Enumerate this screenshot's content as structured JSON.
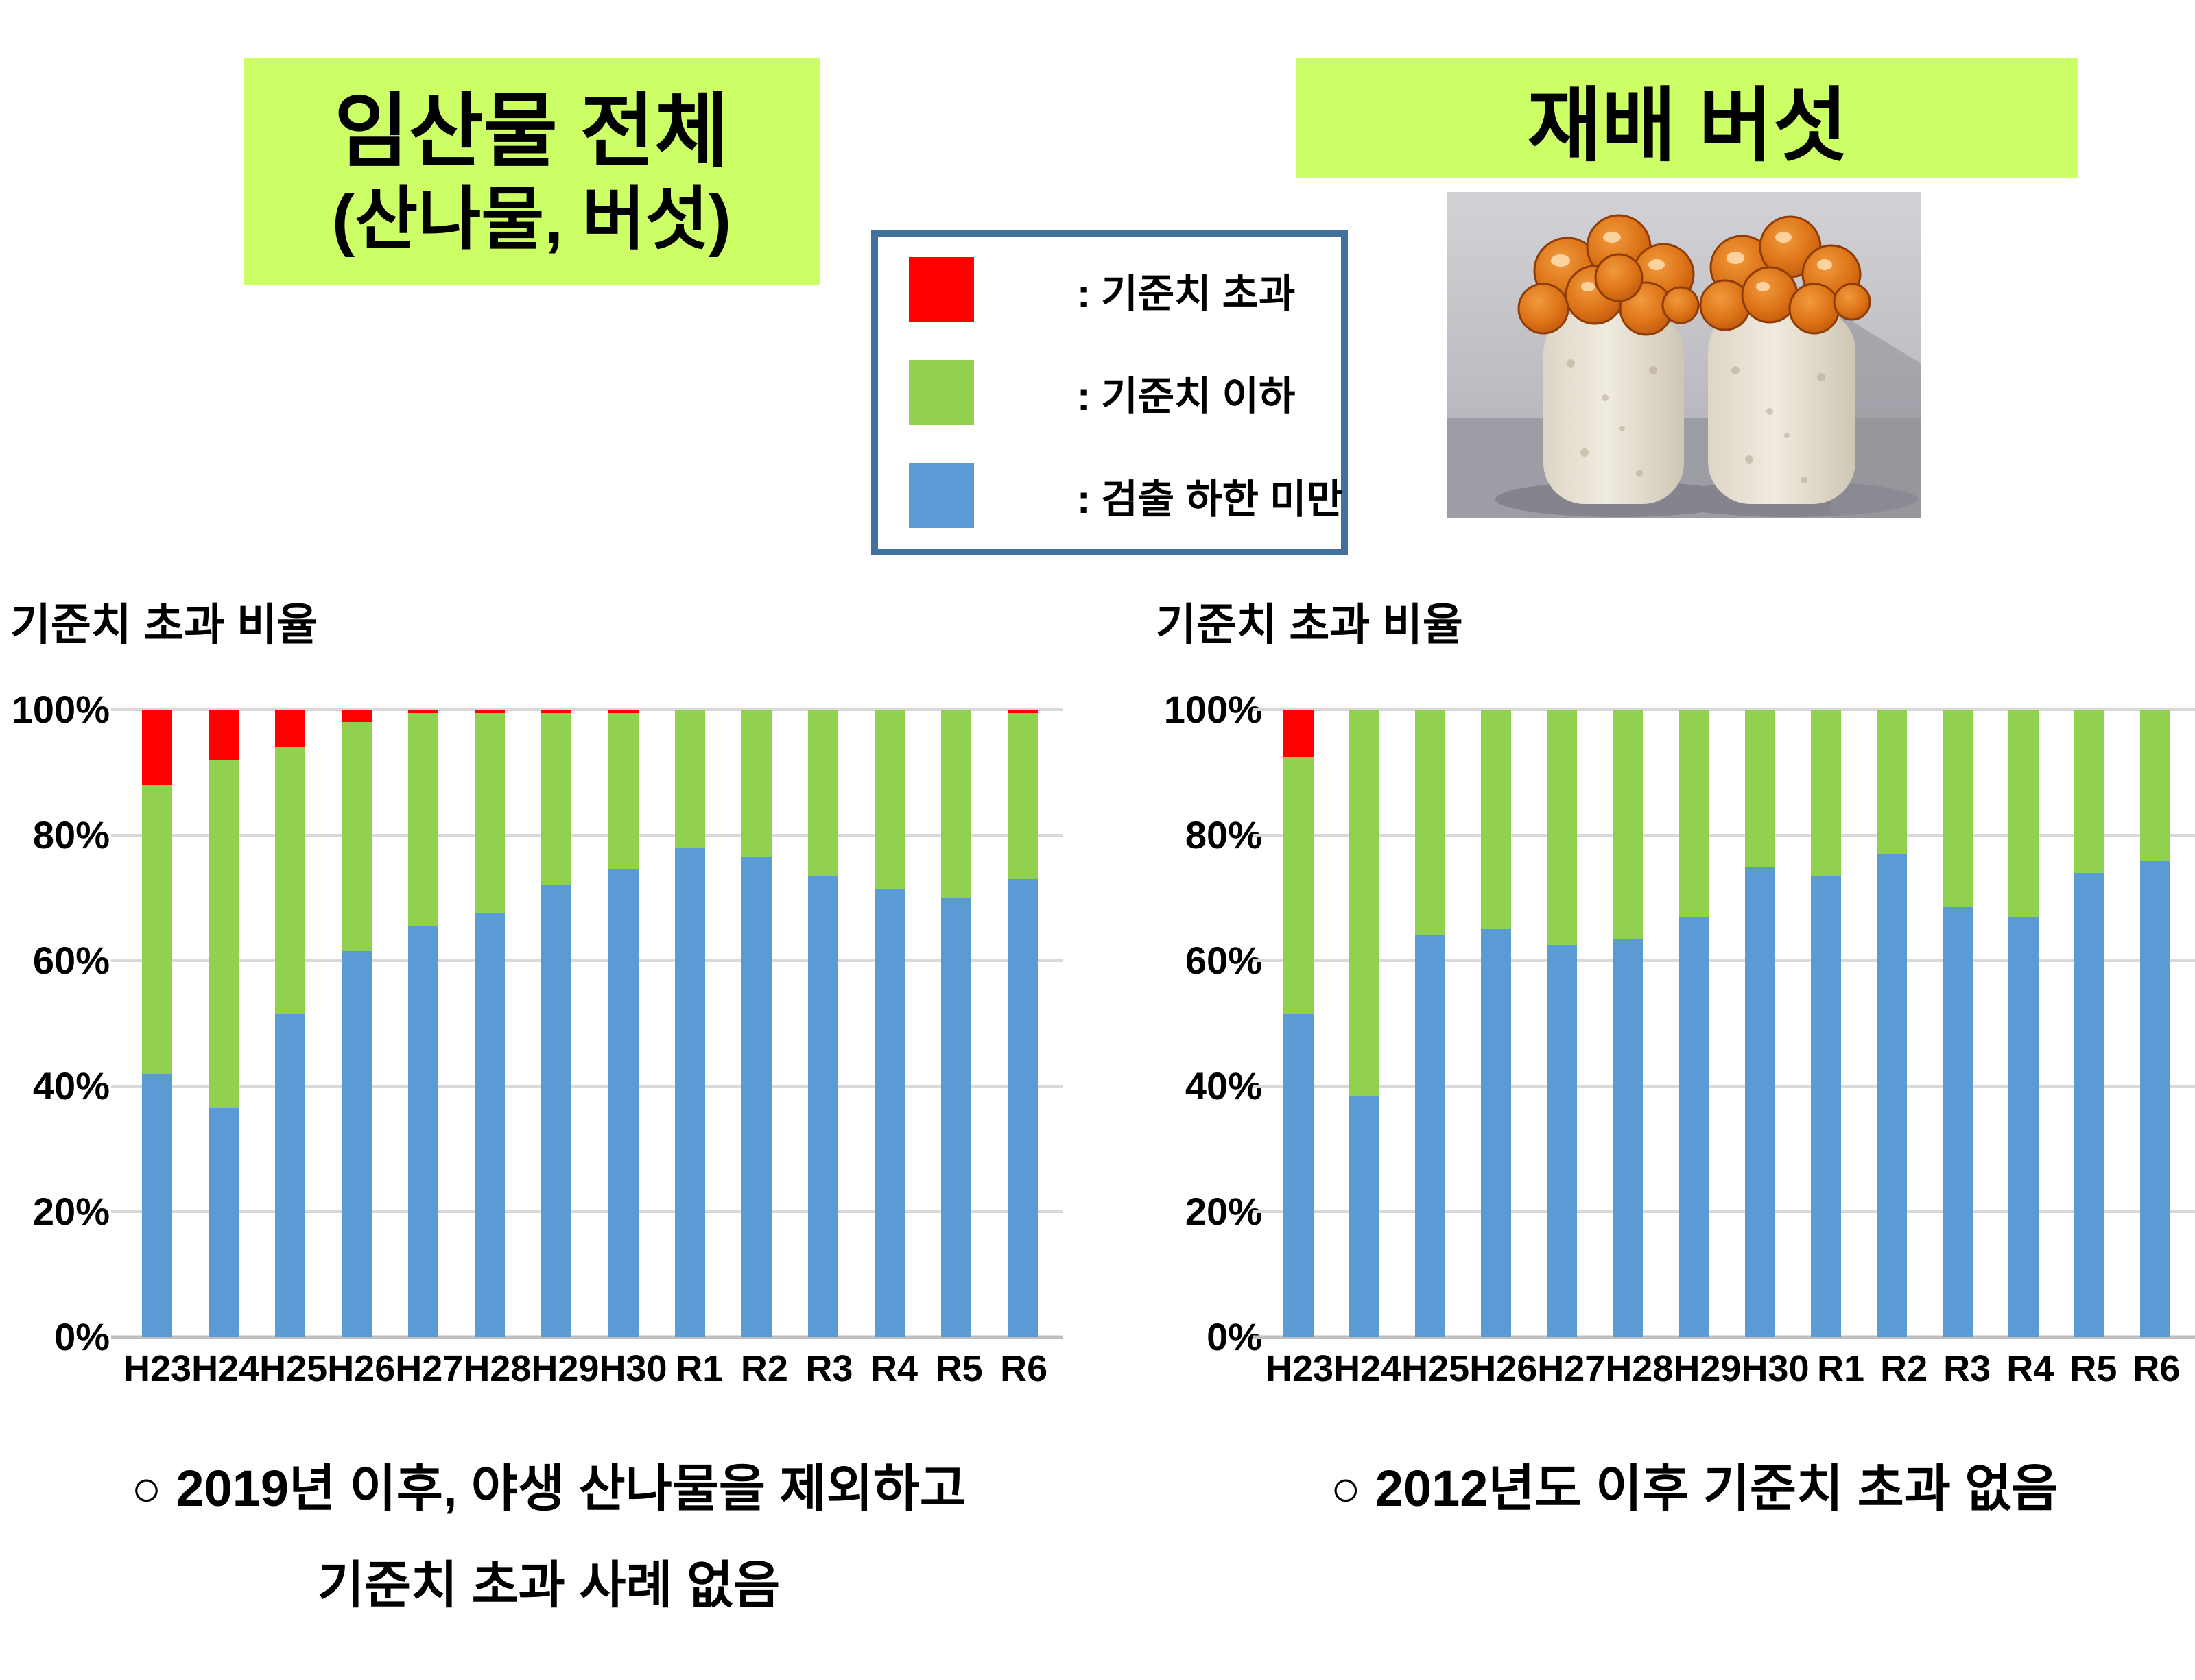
{
  "page": {
    "background": "#ffffff",
    "banner_color": "#ccff66"
  },
  "banners": {
    "left": {
      "line1": "임산물 전체",
      "line2": "(산나물, 버섯)"
    },
    "right": {
      "label": "재배 버섯"
    }
  },
  "legend": {
    "border_color": "#41719c",
    "items": [
      {
        "name": "exceeds-standard",
        "label": ": 기준치 초과",
        "color": "#ff0000"
      },
      {
        "name": "below-standard",
        "label": ": 기준치 이하",
        "color": "#92d050"
      },
      {
        "name": "below-detection-limit",
        "label": ": 검출 하한 미만",
        "color": "#5b9bd5"
      }
    ]
  },
  "photo_palette": {
    "background": "#c2c2c8",
    "substrate": "#eae4d8",
    "caps": "#d96c14"
  },
  "footnotes": {
    "left_line1": "○ 2019년 이후, 야생 산나물을 제외하고",
    "left_line2": "기준치 초과 사례 없음",
    "right_line1": "○ 2012년도 이후 기준치 초과 없음"
  },
  "chart_data": [
    {
      "id": "forest-products-all",
      "section_label": "임산물 전체 (산나물, 버섯)",
      "type": "bar",
      "stacked": true,
      "title": "기준치 초과 비율",
      "grid": true,
      "ylim": [
        0,
        100
      ],
      "y_ticks": [
        "100%",
        "80%",
        "60%",
        "40%",
        "20%",
        "0%"
      ],
      "gridline_color": "#d9d9d9",
      "categories": [
        "H23",
        "H24",
        "H25",
        "H26",
        "H27",
        "H28",
        "H29",
        "H30",
        "R1",
        "R2",
        "R3",
        "R4",
        "R5",
        "R6"
      ],
      "series": [
        {
          "name": "검출 하한 미만",
          "color": "#5b9bd5",
          "values": [
            42,
            36.5,
            51.5,
            61.5,
            65.5,
            67.5,
            72,
            74.5,
            78,
            76.5,
            73.5,
            71.5,
            70,
            73
          ]
        },
        {
          "name": "기준치 이하",
          "color": "#92d050",
          "values": [
            46,
            55.5,
            42.5,
            36.5,
            34,
            32,
            27.5,
            25,
            22,
            23.5,
            26.5,
            28.5,
            30,
            26.5
          ]
        },
        {
          "name": "기준치 초과",
          "color": "#ff0000",
          "values": [
            12,
            8,
            6,
            2,
            0.5,
            0.5,
            0.5,
            0.5,
            0,
            0,
            0,
            0,
            0,
            0.5
          ]
        }
      ]
    },
    {
      "id": "cultivated-mushrooms",
      "section_label": "재배 버섯",
      "type": "bar",
      "stacked": true,
      "title": "기준치 초과 비율",
      "grid": true,
      "ylim": [
        0,
        100
      ],
      "y_ticks": [
        "100%",
        "80%",
        "60%",
        "40%",
        "20%",
        "0%"
      ],
      "gridline_color": "#d9d9d9",
      "categories": [
        "H23",
        "H24",
        "H25",
        "H26",
        "H27",
        "H28",
        "H29",
        "H30",
        "R1",
        "R2",
        "R3",
        "R4",
        "R5",
        "R6"
      ],
      "series": [
        {
          "name": "검출 하한 미만",
          "color": "#5b9bd5",
          "values": [
            51.5,
            38.5,
            64,
            65,
            62.5,
            63.5,
            67,
            75,
            73.5,
            77,
            68.5,
            67,
            74,
            76
          ]
        },
        {
          "name": "기준치 이하",
          "color": "#92d050",
          "values": [
            41,
            61.5,
            36,
            35,
            37.5,
            36.5,
            33,
            25,
            26.5,
            23,
            31.5,
            33,
            26,
            24
          ]
        },
        {
          "name": "기준치 초과",
          "color": "#ff0000",
          "values": [
            7.5,
            0,
            0,
            0,
            0,
            0,
            0,
            0,
            0,
            0,
            0,
            0,
            0,
            0
          ]
        }
      ]
    }
  ]
}
